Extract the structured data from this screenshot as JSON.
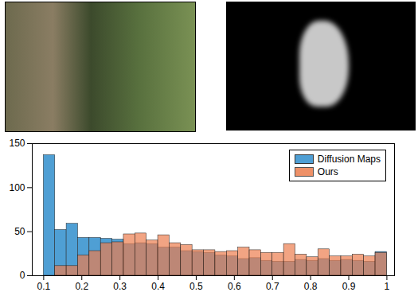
{
  "chart_data": {
    "type": "histogram",
    "bins": [
      0.1,
      0.13,
      0.16,
      0.19,
      0.22,
      0.25,
      0.28,
      0.31,
      0.34,
      0.37,
      0.4,
      0.43,
      0.46,
      0.49,
      0.52,
      0.55,
      0.58,
      0.61,
      0.64,
      0.67,
      0.7,
      0.73,
      0.76,
      0.79,
      0.82,
      0.85,
      0.88,
      0.91,
      0.94,
      0.97,
      1.0
    ],
    "series": [
      {
        "name": "Diffusion Maps",
        "color": "#4f9fd4",
        "values": [
          137,
          52,
          59,
          43,
          43,
          42,
          41,
          36,
          37,
          36,
          32,
          32,
          28,
          27,
          26,
          23,
          22,
          19,
          20,
          17,
          16,
          16,
          18,
          17,
          19,
          17,
          18,
          17,
          16,
          27
        ]
      },
      {
        "name": "Ours",
        "color": "#ec7e4e",
        "values": [
          0,
          11,
          11,
          23,
          28,
          37,
          38,
          47,
          48,
          40,
          46,
          37,
          35,
          29,
          29,
          27,
          28,
          32,
          29,
          26,
          26,
          36,
          24,
          21,
          30,
          22,
          22,
          24,
          22,
          26
        ]
      }
    ],
    "xlim": [
      0.07,
      1.02
    ],
    "xticks": [
      0.1,
      0.2,
      0.3,
      0.4,
      0.5,
      0.6,
      0.7,
      0.8,
      0.9,
      1
    ],
    "ylim": [
      0,
      150
    ],
    "yticks": [
      0,
      50,
      100,
      150
    ],
    "legend": "top-right"
  }
}
